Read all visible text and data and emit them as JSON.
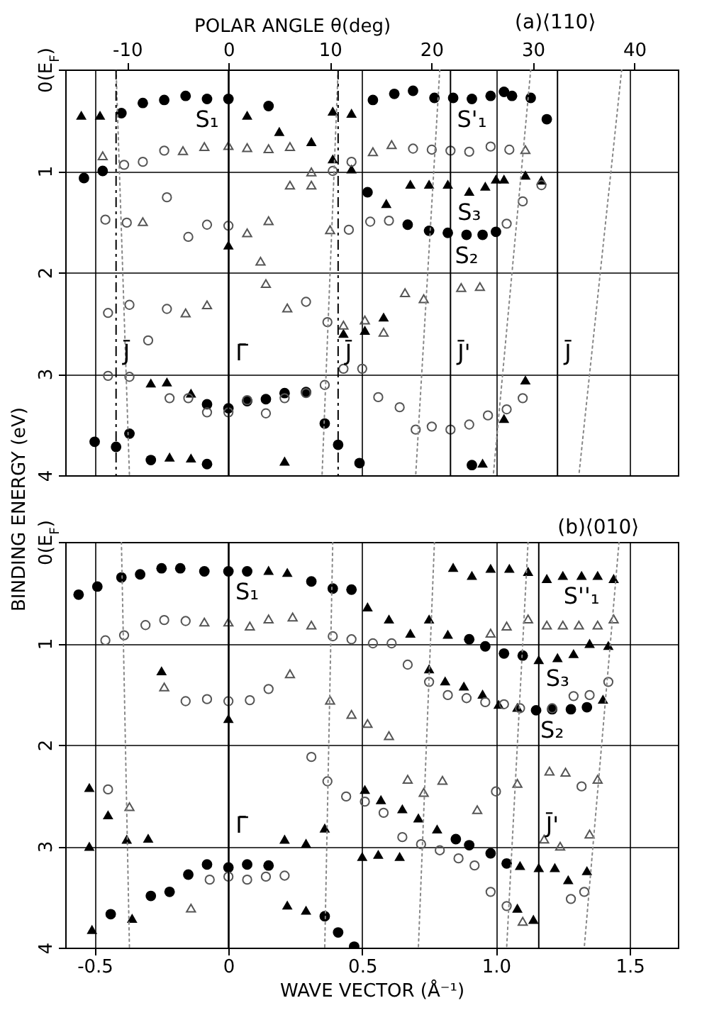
{
  "chart_data": [
    {
      "type": "scatter",
      "x2label": "POLAR ANGLE θ(deg)",
      "xlim": [
        -0.61,
        1.68
      ],
      "xticks": [
        -0.5,
        0,
        0.5,
        1,
        1.5
      ],
      "x2lim": [
        -16.1,
        44.3
      ],
      "x2ticks": [
        -10,
        0,
        10,
        20,
        30,
        40
      ],
      "ylim": [
        4,
        0
      ],
      "yticks": [
        {
          "value": 0,
          "label": "0(E$_{F}$)"
        },
        1,
        2,
        3,
        4
      ],
      "grid": true,
      "tick_labels": "y",
      "ref_lines": [
        {
          "axis": "x",
          "value": -0.42,
          "label": "J̄",
          "line_style": "dashed"
        },
        {
          "axis": "x",
          "value": 0,
          "label": "Γ̄"
        },
        {
          "axis": "x",
          "value": 0.41,
          "label": "J̄",
          "line_style": "dashed"
        },
        {
          "axis": "x",
          "value": 0.83,
          "label": "J̄'"
        },
        {
          "axis": "x",
          "value": 1.23,
          "label": "J̄"
        }
      ],
      "annotations": [
        {
          "text": "S₁",
          "x": -0.08,
          "y": 0.29
        },
        {
          "text": "S'₁",
          "x": 0.91,
          "y": 0.29
        },
        {
          "text": "S₃",
          "x": 0.9,
          "y": 1.2
        },
        {
          "text": "S₂",
          "x": 0.89,
          "y": 1.63
        },
        "(a)⟨110⟩"
      ],
      "series": [
        {
          "color": "#000000",
          "marker": "circle",
          "x": [
            -0.54,
            -0.47,
            -0.4,
            -0.32,
            -0.24,
            -0.16,
            -0.08,
            0,
            0.15,
            0.54,
            0.62,
            0.69,
            0.77,
            0.84,
            0.91,
            0.98,
            1.03,
            1.06,
            1.13,
            1.19,
            0.52,
            0.67,
            0.75,
            0.82,
            0.89,
            0.95,
            1.0,
            -0.08,
            0,
            0.07,
            0.14,
            0.21,
            0.29,
            0.36,
            0.41,
            0.49,
            -0.5,
            -0.42,
            -0.37,
            -0.29,
            -0.08,
            0.91
          ],
          "values": [
            1.07,
            1.0,
            0.43,
            0.33,
            0.3,
            0.26,
            0.29,
            0.29,
            0.36,
            0.3,
            0.24,
            0.21,
            0.28,
            0.28,
            0.29,
            0.26,
            0.22,
            0.26,
            0.28,
            0.49,
            1.21,
            1.53,
            1.59,
            1.61,
            1.63,
            1.63,
            1.6,
            3.3,
            3.34,
            3.27,
            3.25,
            3.19,
            3.18,
            3.49,
            3.7,
            3.88,
            3.67,
            3.72,
            3.59,
            3.85,
            3.89,
            3.9
          ]
        },
        {
          "color": "#000000",
          "marker": "triangle",
          "x": [
            -0.55,
            -0.48,
            0.07,
            0.19,
            0.31,
            0.39,
            0.39,
            0,
            -0.29,
            -0.23,
            -0.14,
            -0.22,
            -0.14,
            0.21,
            0.46,
            0.46,
            0.59,
            0.68,
            0.75,
            0.82,
            0.9,
            0.96,
            1.0,
            1.03,
            1.11,
            1.17,
            0.43,
            0.51,
            0.58,
            1.11,
            1.03,
            0.95
          ],
          "values": [
            0.45,
            0.45,
            0.45,
            0.61,
            0.71,
            0.41,
            0.88,
            1.73,
            3.09,
            3.08,
            3.19,
            3.82,
            3.83,
            3.86,
            0.43,
            0.98,
            1.32,
            1.13,
            1.13,
            1.13,
            1.2,
            1.15,
            1.08,
            1.08,
            1.04,
            1.09,
            2.6,
            2.57,
            2.44,
            3.06,
            3.44,
            3.88
          ]
        },
        {
          "color": "#555555",
          "marker": "circle",
          "x": [
            -0.39,
            -0.32,
            -0.24,
            -0.46,
            -0.38,
            -0.23,
            -0.15,
            -0.08,
            0,
            0.39,
            -0.45,
            -0.37,
            -0.3,
            -0.23,
            -0.45,
            -0.37,
            -0.22,
            -0.15,
            -0.08,
            0,
            0.07,
            0.14,
            0.21,
            0.29,
            0.36,
            0.29,
            0.37,
            0.46,
            0.69,
            0.76,
            0.83,
            0.9,
            0.98,
            1.05,
            0.45,
            0.53,
            0.6,
            1.1,
            1.17,
            1.04,
            0.43,
            0.5,
            0.56,
            0.64,
            0.7,
            0.76,
            0.83,
            0.9,
            0.97,
            1.04,
            1.1
          ],
          "values": [
            0.94,
            0.91,
            0.8,
            1.48,
            1.51,
            1.26,
            1.65,
            1.53,
            1.54,
            1.0,
            2.4,
            2.32,
            2.67,
            2.36,
            3.02,
            3.03,
            3.24,
            3.24,
            3.38,
            3.38,
            3.26,
            3.39,
            3.24,
            3.19,
            3.11,
            2.29,
            2.49,
            0.91,
            0.78,
            0.79,
            0.8,
            0.81,
            0.76,
            0.79,
            1.58,
            1.5,
            1.49,
            1.3,
            1.14,
            1.52,
            2.95,
            2.95,
            3.23,
            3.33,
            3.55,
            3.52,
            3.55,
            3.5,
            3.41,
            3.35,
            3.24
          ]
        },
        {
          "color": "#555555",
          "marker": "triangle",
          "x": [
            -0.47,
            -0.17,
            -0.09,
            0,
            0.07,
            0.15,
            0.23,
            0.31,
            -0.32,
            0.07,
            0.15,
            0.23,
            0.31,
            0.38,
            0.12,
            0.14,
            -0.16,
            -0.08,
            0.22,
            0.54,
            0.61,
            1.11,
            0.66,
            0.73,
            0.87,
            0.94,
            0.43,
            0.51,
            0.58
          ],
          "values": [
            0.85,
            0.8,
            0.76,
            0.75,
            0.77,
            0.78,
            0.76,
            1.01,
            1.5,
            1.61,
            1.49,
            1.14,
            1.14,
            1.58,
            1.89,
            2.11,
            2.4,
            2.32,
            2.35,
            0.81,
            0.74,
            0.79,
            2.2,
            2.26,
            2.15,
            2.14,
            2.52,
            2.47,
            2.59
          ]
        },
        {
          "type": "line",
          "color": "#888888",
          "line_style": "dotted",
          "x": [
            -0.42,
            -0.37
          ],
          "values": [
            0,
            4
          ]
        },
        {
          "type": "line",
          "color": "#888888",
          "line_style": "dotted",
          "x": [
            0.41,
            0.35
          ],
          "values": [
            0,
            4
          ]
        },
        {
          "type": "line",
          "color": "#888888",
          "line_style": "dotted",
          "x": [
            0.79,
            0.7
          ],
          "values": [
            0,
            4
          ]
        },
        {
          "type": "line",
          "color": "#888888",
          "line_style": "dotted",
          "x": [
            1.13,
            0.99
          ],
          "values": [
            0,
            4
          ]
        },
        {
          "type": "line",
          "color": "#888888",
          "line_style": "dotted",
          "x": [
            1.47,
            1.31
          ],
          "values": [
            0,
            4
          ]
        }
      ]
    },
    {
      "type": "scatter",
      "xlabel": "WAVE VECTOR (Å⁻¹)",
      "ylabel": "BINDING ENERGY (eV)",
      "xlim": [
        -0.61,
        1.68
      ],
      "xticks": [
        -0.5,
        0,
        0.5,
        {
          "value": 1,
          "label": "1.0"
        },
        1.5
      ],
      "ylim": [
        4,
        0
      ],
      "yticks": [
        {
          "value": 0,
          "label": "0(E$_{F}$)"
        },
        1,
        2,
        3,
        4
      ],
      "grid": true,
      "ref_lines": [
        {
          "axis": "x",
          "value": 0,
          "label": "Γ̄"
        },
        {
          "axis": "x",
          "value": 1.16,
          "label": "J̄'"
        }
      ],
      "annotations": [
        {
          "text": "S₁",
          "x": 0.07,
          "y": 0.29
        },
        {
          "text": "S''₁",
          "x": 1.32,
          "y": 0.33
        },
        {
          "text": "S₃",
          "x": 1.23,
          "y": 1.14
        },
        {
          "text": "S₂",
          "x": 1.21,
          "y": 1.65
        },
        "(b)⟨010⟩"
      ],
      "series": [
        {
          "color": "#000000",
          "marker": "circle",
          "x": [
            -0.56,
            -0.49,
            -0.4,
            -0.33,
            -0.25,
            -0.18,
            -0.09,
            0,
            0.07,
            0.31,
            0.39,
            0.46,
            0,
            -0.08,
            0.07,
            0.15,
            -0.15,
            -0.22,
            -0.29,
            -0.44,
            0.36,
            0.41,
            0.47,
            0.85,
            0.9,
            0.98,
            1.04,
            0.9,
            0.96,
            1.03,
            1.1,
            1.15,
            1.21,
            1.28,
            1.34
          ],
          "values": [
            0.52,
            0.44,
            0.35,
            0.32,
            0.26,
            0.26,
            0.29,
            0.29,
            0.29,
            0.39,
            0.46,
            0.47,
            3.21,
            3.18,
            3.18,
            3.19,
            3.28,
            3.45,
            3.49,
            3.67,
            3.69,
            3.85,
            3.99,
            2.93,
            2.99,
            3.07,
            3.17,
            0.96,
            1.03,
            1.1,
            1.12,
            1.66,
            1.65,
            1.65,
            1.63
          ]
        },
        {
          "color": "#000000",
          "marker": "triangle",
          "x": [
            -0.52,
            -0.45,
            -0.52,
            -0.38,
            -0.3,
            -0.25,
            0,
            -0.51,
            -0.36,
            0.15,
            0.22,
            0.21,
            0.29,
            0.36,
            0.22,
            0.29,
            0.52,
            0.6,
            0.68,
            0.75,
            0.82,
            0.51,
            0.57,
            0.65,
            0.71,
            0.78,
            0.5,
            0.56,
            0.64,
            0.84,
            0.91,
            0.98,
            1.05,
            1.12,
            1.19,
            1.25,
            1.32,
            1.38,
            1.44,
            0.75,
            0.81,
            0.88,
            0.95,
            1.01,
            1.08,
            1.16,
            1.23,
            1.29,
            1.35,
            1.42,
            1.4,
            1.08,
            1.14,
            1.09,
            1.16,
            1.22,
            1.27,
            1.34
          ],
          "values": [
            2.42,
            2.69,
            3.0,
            2.93,
            2.92,
            1.27,
            1.74,
            3.82,
            3.71,
            0.28,
            0.3,
            2.93,
            2.97,
            2.82,
            3.58,
            3.63,
            0.64,
            0.76,
            0.9,
            0.76,
            0.91,
            2.44,
            2.54,
            2.63,
            2.72,
            2.83,
            3.1,
            3.08,
            3.1,
            0.25,
            0.33,
            0.26,
            0.26,
            0.29,
            0.36,
            0.33,
            0.33,
            0.33,
            0.36,
            1.25,
            1.37,
            1.42,
            1.5,
            1.6,
            1.63,
            1.16,
            1.14,
            1.1,
            1.0,
            1.02,
            1.55,
            3.61,
            3.72,
            3.19,
            3.21,
            3.21,
            3.33,
            3.24
          ]
        },
        {
          "color": "#555555",
          "marker": "circle",
          "x": [
            -0.46,
            -0.39,
            -0.31,
            -0.24,
            -0.16,
            -0.16,
            -0.08,
            0,
            0.08,
            0.15,
            0.39,
            0.31,
            0.37,
            -0.45,
            -0.07,
            0,
            0.07,
            0.14,
            0.21,
            0.46,
            0.54,
            0.61,
            0.67,
            0.75,
            0.82,
            0.89,
            0.96,
            1.03,
            1.09,
            1.21,
            1.29,
            1.35,
            1.42,
            0.44,
            0.51,
            0.58,
            0.65,
            0.72,
            0.79,
            0.86,
            0.92,
            1.0,
            0.98,
            1.04,
            1.28,
            1.33,
            1.32
          ],
          "values": [
            0.97,
            0.92,
            0.82,
            0.77,
            0.78,
            1.57,
            1.55,
            1.57,
            1.56,
            1.45,
            0.93,
            2.12,
            2.36,
            2.44,
            3.33,
            3.3,
            3.33,
            3.3,
            3.29,
            0.96,
            1.0,
            1.0,
            1.21,
            1.38,
            1.51,
            1.54,
            1.58,
            1.6,
            1.64,
            1.64,
            1.52,
            1.51,
            1.38,
            2.51,
            2.56,
            2.67,
            2.91,
            2.98,
            3.04,
            3.12,
            3.19,
            2.46,
            3.45,
            3.59,
            3.52,
            3.45,
            2.41
          ]
        },
        {
          "color": "#555555",
          "marker": "triangle",
          "x": [
            -0.24,
            -0.09,
            0,
            0.08,
            0.15,
            0.24,
            0.31,
            0.23,
            0.38,
            -0.37,
            -0.14,
            0.46,
            0.52,
            0.6,
            0.67,
            0.73,
            0.8,
            0.93,
            0.98,
            1.04,
            1.12,
            1.19,
            1.25,
            1.31,
            1.38,
            1.44,
            1.08,
            1.2,
            1.26,
            1.38,
            1.18,
            1.24,
            1.35,
            1.1
          ],
          "values": [
            1.43,
            0.79,
            0.79,
            0.83,
            0.76,
            0.74,
            0.82,
            1.3,
            1.56,
            2.61,
            3.61,
            1.7,
            1.79,
            1.91,
            2.34,
            2.47,
            2.35,
            2.64,
            0.9,
            0.83,
            0.76,
            0.82,
            0.82,
            0.82,
            0.82,
            0.76,
            2.38,
            2.26,
            2.27,
            2.34,
            2.93,
            3.0,
            2.88,
            3.74
          ]
        },
        {
          "type": "line",
          "color": "#888888",
          "line_style": "dotted",
          "x": [
            -0.4,
            -0.37
          ],
          "values": [
            0,
            4
          ]
        },
        {
          "type": "line",
          "color": "#888888",
          "line_style": "dotted",
          "x": [
            0.39,
            0.36
          ],
          "values": [
            0,
            4
          ]
        },
        {
          "type": "line",
          "color": "#888888",
          "line_style": "dotted",
          "x": [
            0.77,
            0.71
          ],
          "values": [
            0,
            4
          ]
        },
        {
          "type": "line",
          "color": "#888888",
          "line_style": "dotted",
          "x": [
            1.12,
            1.04
          ],
          "values": [
            0,
            4
          ]
        },
        {
          "type": "line",
          "color": "#888888",
          "line_style": "dotted",
          "x": [
            1.46,
            1.33
          ],
          "values": [
            0,
            4
          ]
        }
      ]
    }
  ]
}
